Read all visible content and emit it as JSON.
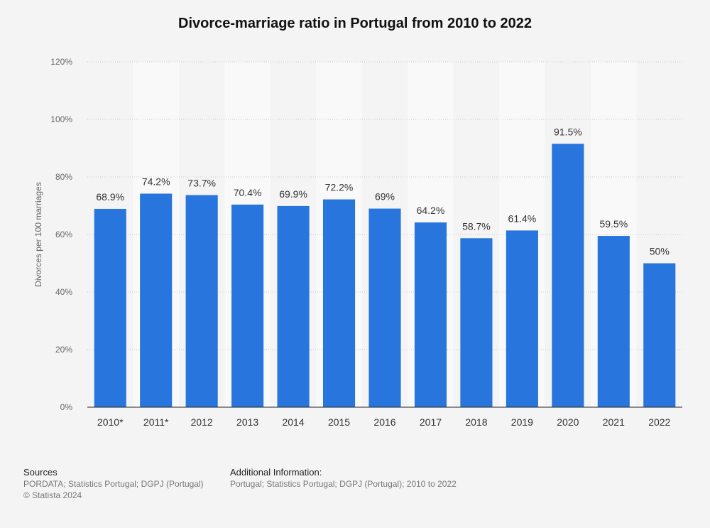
{
  "chart_data": {
    "type": "bar",
    "title": "Divorce-marriage ratio in Portugal from 2010 to 2022",
    "ylabel": "Divorces per 100 marriages",
    "xlabel": "",
    "categories": [
      "2010*",
      "2011*",
      "2012",
      "2013",
      "2014",
      "2015",
      "2016",
      "2017",
      "2018",
      "2019",
      "2020",
      "2021",
      "2022"
    ],
    "values": [
      68.9,
      74.2,
      73.7,
      70.4,
      69.9,
      72.2,
      69,
      64.2,
      58.7,
      61.4,
      91.5,
      59.5,
      50
    ],
    "value_labels": [
      "68.9%",
      "74.2%",
      "73.7%",
      "70.4%",
      "69.9%",
      "72.2%",
      "69%",
      "64.2%",
      "58.7%",
      "61.4%",
      "91.5%",
      "59.5%",
      "50%"
    ],
    "ylim": [
      0,
      120
    ],
    "yticks": [
      0,
      20,
      40,
      60,
      80,
      100,
      120
    ],
    "ytick_labels": [
      "0%",
      "20%",
      "40%",
      "60%",
      "80%",
      "100%",
      "120%"
    ],
    "grid": true,
    "bar_color": "#2876dd"
  },
  "footer": {
    "sources_heading": "Sources",
    "sources_text": "PORDATA; Statistics Portugal; DGPJ (Portugal)",
    "copyright": "© Statista 2024",
    "additional_heading": "Additional Information:",
    "additional_text": "Portugal; Statistics Portugal; DGPJ (Portugal); 2010 to 2022"
  }
}
